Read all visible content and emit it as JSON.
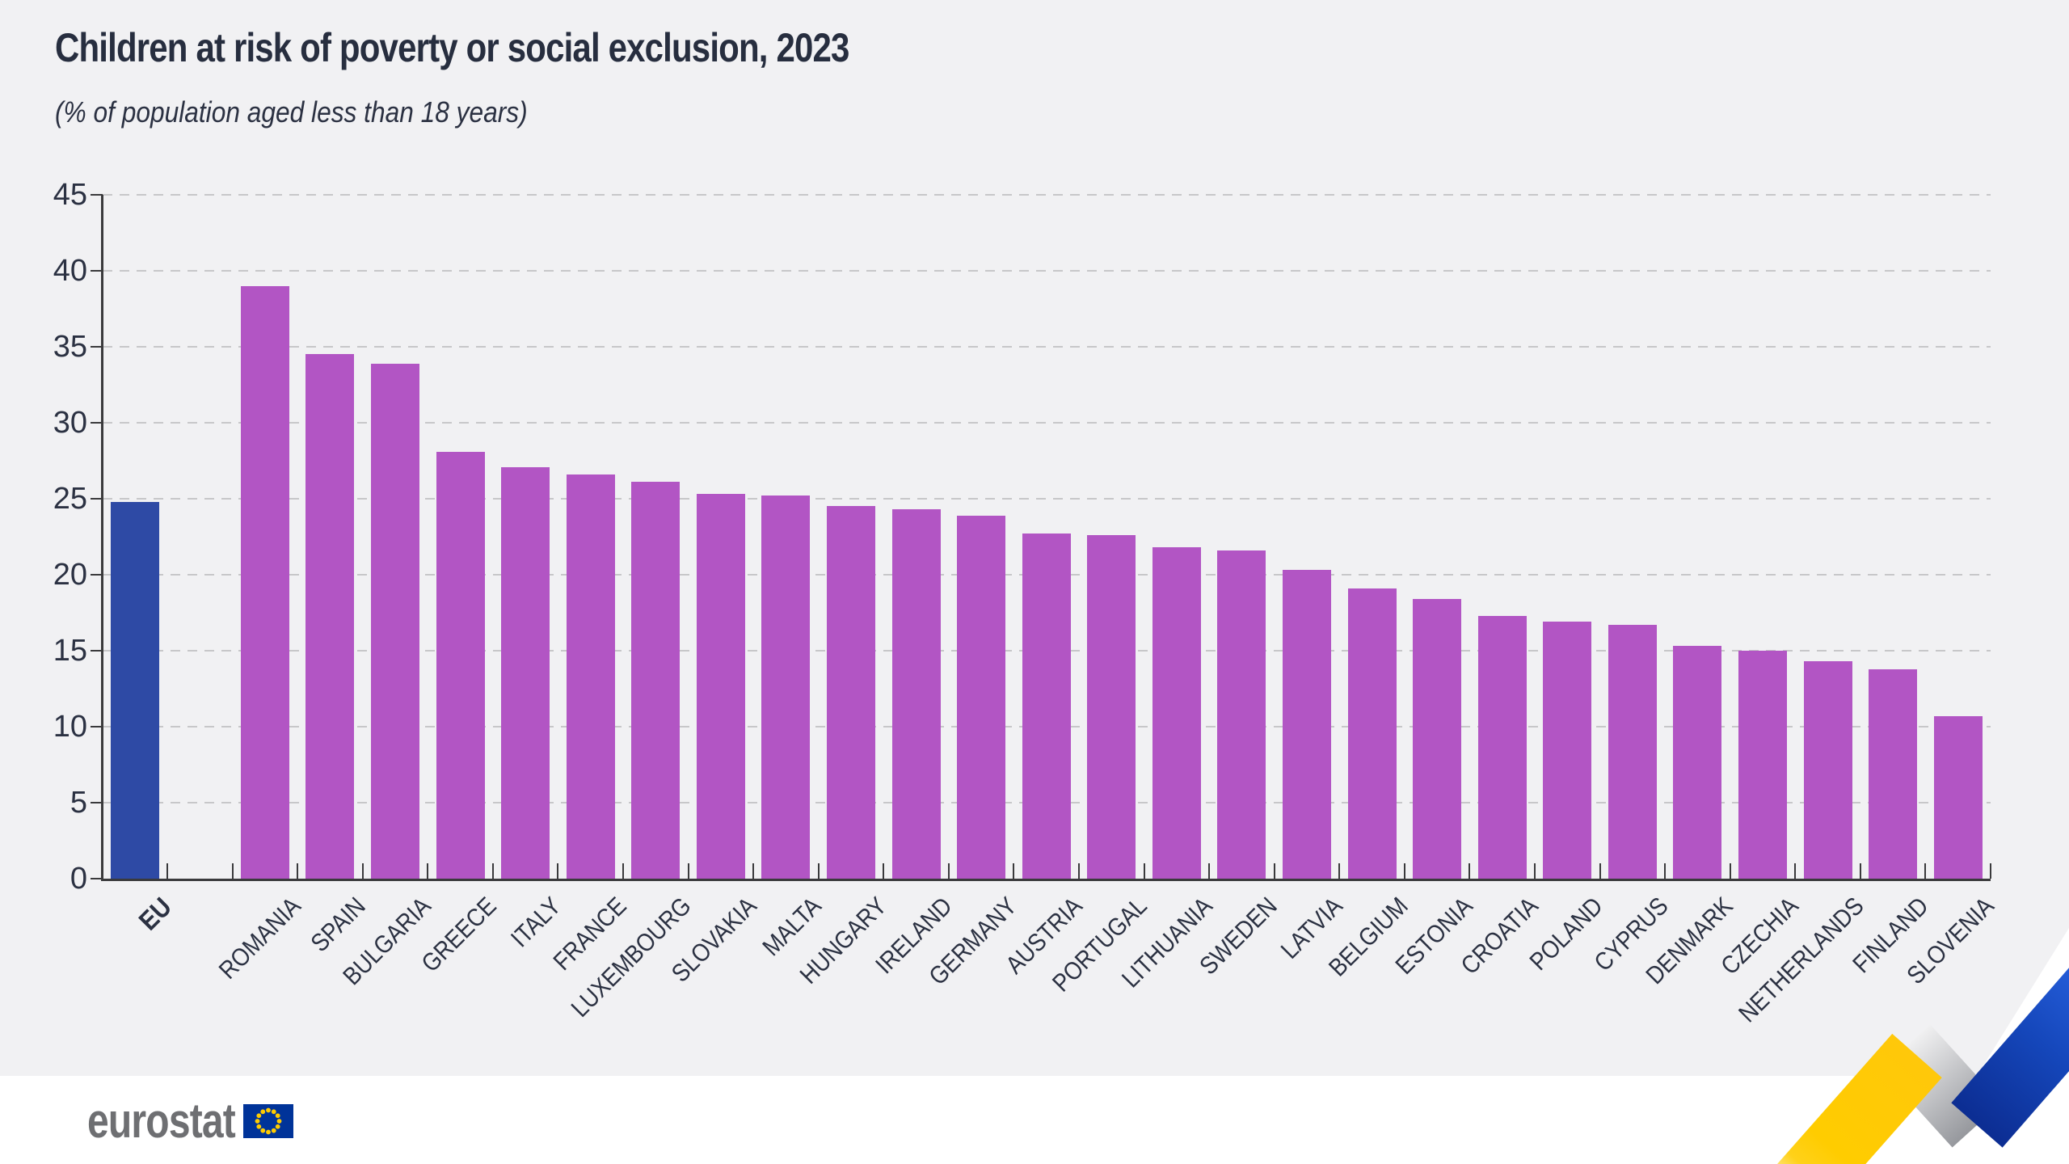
{
  "header": {
    "title": "Children at risk of poverty or social exclusion, 2023",
    "subtitle": "(% of population aged less than 18 years)"
  },
  "footer": {
    "logo_text": "eurostat",
    "flag": {
      "blue": "#003399",
      "star_yellow": "#ffcc00"
    }
  },
  "decoration": {
    "ribbon": {
      "yellow": "#ffcc00",
      "silver": "#96989d",
      "blue_dark": "#0c2d92",
      "blue_light": "#2f6bec"
    },
    "panel_color": "#f1f1f3"
  },
  "chart_data": {
    "type": "bar",
    "title": "Children at risk of poverty or social exclusion, 2023",
    "subtitle": "(% of population aged less than 18 years)",
    "xlabel": "",
    "ylabel": "",
    "ylim": [
      0,
      45
    ],
    "ytick_step": 5,
    "yticks": [
      0,
      5,
      10,
      15,
      20,
      25,
      30,
      35,
      40,
      45
    ],
    "grid": "horizontal-dashed",
    "legend": "none",
    "categories": [
      "EU",
      "ROMANIA",
      "SPAIN",
      "BULGARIA",
      "GREECE",
      "ITALY",
      "FRANCE",
      "LUXEMBOURG",
      "SLOVAKIA",
      "MALTA",
      "HUNGARY",
      "IRELAND",
      "GERMANY",
      "AUSTRIA",
      "PORTUGAL",
      "LITHUANIA",
      "SWEDEN",
      "LATVIA",
      "BELGIUM",
      "ESTONIA",
      "CROATIA",
      "POLAND",
      "CYPRUS",
      "DENMARK",
      "CZECHIA",
      "NETHERLANDS",
      "FINLAND",
      "SLOVENIA"
    ],
    "values": [
      24.8,
      39.0,
      34.5,
      33.9,
      28.1,
      27.1,
      26.6,
      26.1,
      25.3,
      25.2,
      24.5,
      24.3,
      23.9,
      22.7,
      22.6,
      21.8,
      21.6,
      20.3,
      19.1,
      18.4,
      17.3,
      16.9,
      16.7,
      15.3,
      15.0,
      14.3,
      13.8,
      10.7
    ],
    "bar_colors": {
      "eu": "#2e4aa5",
      "member_state": "#b255c4"
    },
    "axis_color": "#3a3a3c",
    "gridline_color": "#c7c7c9",
    "label_color": "#2b3142"
  }
}
